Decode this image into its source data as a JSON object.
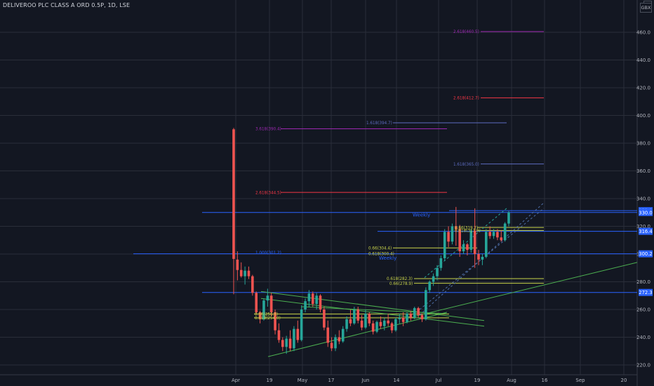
{
  "header": {
    "symbol": "DELIVEROO PLC CLASS A ORD 0.5P, 1D, LSE",
    "currency": "GBX"
  },
  "colors": {
    "background": "#131722",
    "up": "#26a69a",
    "down": "#ef5350",
    "level_line": "#2962ff",
    "axis_text": "#b2b5be",
    "grid": "#2a2e39",
    "trend_green": "#4caf50",
    "fib_red": "#f23645",
    "fib_purple": "#9c27b0",
    "fib_blue": "#5c6bc0",
    "fib_yellow": "#c9d44a"
  },
  "chart_data": {
    "type": "candlestick",
    "title": "DELIVEROO PLC CLASS A ORD 0.5P, 1D, LSE",
    "ylim": [
      215,
      467
    ],
    "y_ticks": [
      220,
      240,
      260,
      280,
      300,
      320,
      340,
      360,
      380,
      400,
      420,
      440,
      460
    ],
    "y_tick_labels": [
      "220.0",
      "240.0",
      "260.0",
      "280.0",
      "300.0",
      "320.0",
      "340.0",
      "360.0",
      "380.0",
      "400.0",
      "420.0",
      "440.0",
      "460.0"
    ],
    "x_tick_labels": [
      "Apr",
      "19",
      "May",
      "17",
      "Jun",
      "14",
      "Jul",
      "19",
      "Aug",
      "16",
      "Sep",
      "20"
    ],
    "grid": true,
    "candles": [
      {
        "o": 390.0,
        "h": 391.0,
        "l": 271.0,
        "c": 296.5
      },
      {
        "o": 296.0,
        "h": 302.0,
        "l": 281.0,
        "c": 288.5
      },
      {
        "o": 288.5,
        "h": 294.0,
        "l": 283.0,
        "c": 284.0
      },
      {
        "o": 284.0,
        "h": 291.0,
        "l": 278.0,
        "c": 288.0
      },
      {
        "o": 288.0,
        "h": 291.0,
        "l": 282.0,
        "c": 284.0
      },
      {
        "o": 284.0,
        "h": 285.0,
        "l": 270.0,
        "c": 272.0
      },
      {
        "o": 272.0,
        "h": 273.0,
        "l": 257.0,
        "c": 258.0
      },
      {
        "o": 258.0,
        "h": 259.0,
        "l": 250.0,
        "c": 253.0
      },
      {
        "o": 253.0,
        "h": 268.0,
        "l": 252.0,
        "c": 266.5
      },
      {
        "o": 266.5,
        "h": 275.0,
        "l": 262.0,
        "c": 270.0
      },
      {
        "o": 270.0,
        "h": 272.0,
        "l": 255.0,
        "c": 258.0
      },
      {
        "o": 258.0,
        "h": 260.0,
        "l": 242.0,
        "c": 245.0
      },
      {
        "o": 245.0,
        "h": 250.0,
        "l": 236.0,
        "c": 238.0
      },
      {
        "o": 238.0,
        "h": 240.0,
        "l": 230.0,
        "c": 233.0
      },
      {
        "o": 233.0,
        "h": 241.0,
        "l": 228.0,
        "c": 239.0
      },
      {
        "o": 239.0,
        "h": 245.0,
        "l": 230.0,
        "c": 232.0
      },
      {
        "o": 232.0,
        "h": 248.0,
        "l": 230.0,
        "c": 246.0
      },
      {
        "o": 246.0,
        "h": 252.0,
        "l": 236.0,
        "c": 238.0
      },
      {
        "o": 238.0,
        "h": 263.0,
        "l": 237.0,
        "c": 260.0
      },
      {
        "o": 260.0,
        "h": 268.0,
        "l": 258.0,
        "c": 266.0
      },
      {
        "o": 266.0,
        "h": 274.0,
        "l": 262.0,
        "c": 271.5
      },
      {
        "o": 271.5,
        "h": 273.0,
        "l": 262.0,
        "c": 264.0
      },
      {
        "o": 264.0,
        "h": 272.0,
        "l": 260.0,
        "c": 270.0
      },
      {
        "o": 270.0,
        "h": 271.0,
        "l": 258.0,
        "c": 260.0
      },
      {
        "o": 260.0,
        "h": 262.0,
        "l": 245.0,
        "c": 247.0
      },
      {
        "o": 247.0,
        "h": 252.0,
        "l": 233.0,
        "c": 236.0
      },
      {
        "o": 236.0,
        "h": 240.0,
        "l": 230.0,
        "c": 232.0
      },
      {
        "o": 232.0,
        "h": 242.0,
        "l": 230.0,
        "c": 240.0
      },
      {
        "o": 240.0,
        "h": 245.0,
        "l": 235.0,
        "c": 237.0
      },
      {
        "o": 237.0,
        "h": 248.0,
        "l": 236.0,
        "c": 246.0
      },
      {
        "o": 246.0,
        "h": 255.0,
        "l": 244.0,
        "c": 253.0
      },
      {
        "o": 253.0,
        "h": 260.0,
        "l": 248.0,
        "c": 250.0
      },
      {
        "o": 250.0,
        "h": 262.0,
        "l": 249.0,
        "c": 260.0
      },
      {
        "o": 260.0,
        "h": 262.0,
        "l": 250.0,
        "c": 252.0
      },
      {
        "o": 252.0,
        "h": 256.0,
        "l": 245.0,
        "c": 247.0
      },
      {
        "o": 247.0,
        "h": 260.0,
        "l": 246.0,
        "c": 257.0
      },
      {
        "o": 257.0,
        "h": 258.0,
        "l": 248.0,
        "c": 250.0
      },
      {
        "o": 250.0,
        "h": 252.0,
        "l": 242.0,
        "c": 244.0
      },
      {
        "o": 244.0,
        "h": 252.0,
        "l": 243.0,
        "c": 251.0
      },
      {
        "o": 251.0,
        "h": 255.0,
        "l": 246.0,
        "c": 248.0
      },
      {
        "o": 248.0,
        "h": 254.0,
        "l": 245.0,
        "c": 252.0
      },
      {
        "o": 252.0,
        "h": 257.0,
        "l": 248.0,
        "c": 250.0
      },
      {
        "o": 250.0,
        "h": 251.0,
        "l": 243.0,
        "c": 245.0
      },
      {
        "o": 245.0,
        "h": 254.0,
        "l": 244.0,
        "c": 253.0
      },
      {
        "o": 253.0,
        "h": 257.0,
        "l": 250.0,
        "c": 254.0
      },
      {
        "o": 254.0,
        "h": 258.0,
        "l": 248.0,
        "c": 251.0
      },
      {
        "o": 251.0,
        "h": 258.0,
        "l": 250.0,
        "c": 257.0
      },
      {
        "o": 257.0,
        "h": 259.0,
        "l": 252.0,
        "c": 254.0
      },
      {
        "o": 254.0,
        "h": 262.0,
        "l": 253.0,
        "c": 261.0
      },
      {
        "o": 261.0,
        "h": 262.0,
        "l": 254.0,
        "c": 256.0
      },
      {
        "o": 256.0,
        "h": 257.0,
        "l": 251.0,
        "c": 253.0
      },
      {
        "o": 253.0,
        "h": 276.0,
        "l": 252.0,
        "c": 274.0
      },
      {
        "o": 274.0,
        "h": 281.0,
        "l": 272.0,
        "c": 280.0
      },
      {
        "o": 280.0,
        "h": 286.0,
        "l": 277.0,
        "c": 284.0
      },
      {
        "o": 284.0,
        "h": 292.0,
        "l": 281.0,
        "c": 290.0
      },
      {
        "o": 290.0,
        "h": 299.0,
        "l": 288.0,
        "c": 297.0
      },
      {
        "o": 297.0,
        "h": 318.0,
        "l": 295.0,
        "c": 316.0
      },
      {
        "o": 316.0,
        "h": 320.0,
        "l": 305.0,
        "c": 309.0
      },
      {
        "o": 309.0,
        "h": 322.0,
        "l": 307.0,
        "c": 320.0
      },
      {
        "o": 320.0,
        "h": 334.0,
        "l": 306.0,
        "c": 318.0
      },
      {
        "o": 318.0,
        "h": 321.0,
        "l": 298.0,
        "c": 302.0
      },
      {
        "o": 302.0,
        "h": 310.0,
        "l": 300.0,
        "c": 307.0
      },
      {
        "o": 307.0,
        "h": 308.0,
        "l": 299.0,
        "c": 303.0
      },
      {
        "o": 303.0,
        "h": 318.0,
        "l": 301.0,
        "c": 317.0
      },
      {
        "o": 317.0,
        "h": 333.0,
        "l": 290.0,
        "c": 300.0
      },
      {
        "o": 300.0,
        "h": 303.0,
        "l": 292.0,
        "c": 296.0
      },
      {
        "o": 296.0,
        "h": 300.0,
        "l": 292.0,
        "c": 298.0
      },
      {
        "o": 298.0,
        "h": 318.0,
        "l": 297.0,
        "c": 316.0
      },
      {
        "o": 316.0,
        "h": 320.0,
        "l": 311.0,
        "c": 313.0
      },
      {
        "o": 313.0,
        "h": 318.0,
        "l": 311.0,
        "c": 316.0
      },
      {
        "o": 316.0,
        "h": 318.0,
        "l": 310.0,
        "c": 312.0
      },
      {
        "o": 312.0,
        "h": 317.0,
        "l": 309.0,
        "c": 310.0
      },
      {
        "o": 310.0,
        "h": 323.0,
        "l": 309.0,
        "c": 322.0
      },
      {
        "o": 322.0,
        "h": 331.0,
        "l": 320.0,
        "c": 330.0
      }
    ],
    "price_labels": [
      {
        "text": "331.3",
        "value": 331.3,
        "color": "#2962ff"
      },
      {
        "text": "330.0",
        "value": 330.0,
        "color": "#2962ff"
      },
      {
        "text": "316.4",
        "value": 316.4,
        "color": "#2962ff"
      },
      {
        "text": "300.2",
        "value": 300.2,
        "color": "#2962ff"
      },
      {
        "text": "272.3",
        "value": 272.3,
        "color": "#2962ff"
      }
    ],
    "fib_labels": [
      {
        "text": "2.618(460.5)",
        "value": 460.5,
        "color": "#9c27b0"
      },
      {
        "text": "2.618(412.7)",
        "value": 412.7,
        "color": "#f23645"
      },
      {
        "text": "1.618(394.7)",
        "value": 394.7,
        "color": "#5c6bc0"
      },
      {
        "text": "3.618(390.4)",
        "value": 390.4,
        "color": "#9c27b0"
      },
      {
        "text": "1.618(365.0)",
        "value": 365.0,
        "color": "#5c6bc0"
      },
      {
        "text": "2.618(344.5)",
        "value": 344.5,
        "color": "#f23645"
      },
      {
        "text": "0.66(304.4)",
        "value": 304.4,
        "color": "#c9d44a"
      },
      {
        "text": "0.618(300.4)",
        "value": 300.4,
        "color": "#c9d44a"
      },
      {
        "text": "1.000(301.2)",
        "value": 301.2,
        "color": "#2962ff"
      },
      {
        "text": "0.66(319.2)",
        "value": 319.2,
        "color": "#c9d44a"
      },
      {
        "text": "0.618(317.0)",
        "value": 317.0,
        "color": "#c9d44a"
      },
      {
        "text": "0.618(282.3)",
        "value": 282.3,
        "color": "#c9d44a"
      },
      {
        "text": "0.66(278.9)",
        "value": 278.9,
        "color": "#c9d44a"
      },
      {
        "text": "0.66(256.8)",
        "value": 256.8,
        "color": "#c9d44a"
      },
      {
        "text": "0.618(254.0)",
        "value": 254.0,
        "color": "#c9d44a"
      }
    ],
    "annotations": [
      "Weekly",
      "Weekly"
    ]
  }
}
